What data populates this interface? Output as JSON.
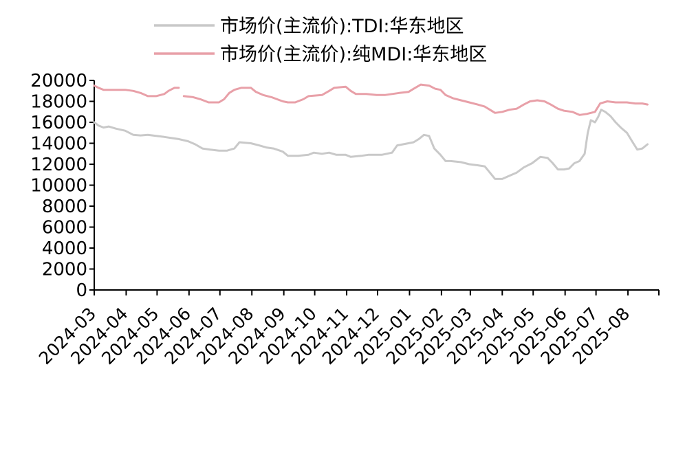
{
  "colors": {
    "tdi": "#c9c9c9",
    "mdi": "#e8a0a8",
    "axis": "#000000"
  },
  "chart_data": {
    "type": "line",
    "title": "",
    "xlabel": "",
    "ylabel": "",
    "ylim": [
      0,
      20000
    ],
    "yticks": [
      0,
      2000,
      4000,
      6000,
      8000,
      10000,
      12000,
      14000,
      16000,
      18000,
      20000
    ],
    "ytick_labels": [
      "0",
      "2000",
      "4000",
      "6000",
      "8000",
      "10000",
      "12000",
      "14000",
      "16000",
      "18000",
      "20000"
    ],
    "xlim": [
      "2024-03-01",
      "2025-08-31"
    ],
    "xtick_labels": [
      "2024-03",
      "2024-04",
      "2024-05",
      "2024-06",
      "2024-07",
      "2024-08",
      "2024-09",
      "2024-10",
      "2024-11",
      "2024-12",
      "2025-01",
      "2025-02",
      "2025-03",
      "2025-04",
      "2025-05",
      "2025-06",
      "2025-07",
      "2025-08"
    ],
    "legend_position": "top",
    "grid": false,
    "series": [
      {
        "name": "市场价(主流价):TDI:华东地区",
        "color": "#c9c9c9",
        "points": [
          [
            "2024-03-01",
            16000
          ],
          [
            "2024-03-05",
            15700
          ],
          [
            "2024-03-10",
            15500
          ],
          [
            "2024-03-15",
            15600
          ],
          [
            "2024-03-22",
            15400
          ],
          [
            "2024-03-31",
            15200
          ],
          [
            "2024-04-08",
            14800
          ],
          [
            "2024-04-15",
            14750
          ],
          [
            "2024-04-22",
            14800
          ],
          [
            "2024-04-30",
            14700
          ],
          [
            "2024-05-08",
            14600
          ],
          [
            "2024-05-15",
            14500
          ],
          [
            "2024-05-22",
            14400
          ],
          [
            "2024-05-31",
            14200
          ],
          [
            "2024-06-07",
            13900
          ],
          [
            "2024-06-14",
            13500
          ],
          [
            "2024-06-21",
            13400
          ],
          [
            "2024-06-30",
            13300
          ],
          [
            "2024-07-08",
            13300
          ],
          [
            "2024-07-15",
            13500
          ],
          [
            "2024-07-20",
            14100
          ],
          [
            "2024-07-31",
            14000
          ],
          [
            "2024-08-08",
            13800
          ],
          [
            "2024-08-15",
            13600
          ],
          [
            "2024-08-22",
            13500
          ],
          [
            "2024-08-31",
            13200
          ],
          [
            "2024-09-05",
            12800
          ],
          [
            "2024-09-15",
            12800
          ],
          [
            "2024-09-25",
            12900
          ],
          [
            "2024-09-30",
            13100
          ],
          [
            "2024-10-08",
            13000
          ],
          [
            "2024-10-15",
            13100
          ],
          [
            "2024-10-22",
            12900
          ],
          [
            "2024-10-31",
            12900
          ],
          [
            "2024-11-05",
            12700
          ],
          [
            "2024-11-15",
            12800
          ],
          [
            "2024-11-22",
            12900
          ],
          [
            "2024-11-30",
            12900
          ],
          [
            "2024-12-05",
            12900
          ],
          [
            "2024-12-15",
            13100
          ],
          [
            "2024-12-20",
            13800
          ],
          [
            "2024-12-31",
            14000
          ],
          [
            "2025-01-05",
            14100
          ],
          [
            "2025-01-10",
            14400
          ],
          [
            "2025-01-15",
            14800
          ],
          [
            "2025-01-20",
            14700
          ],
          [
            "2025-01-25",
            13500
          ],
          [
            "2025-01-31",
            12900
          ],
          [
            "2025-02-05",
            12300
          ],
          [
            "2025-02-10",
            12300
          ],
          [
            "2025-02-20",
            12200
          ],
          [
            "2025-02-28",
            12000
          ],
          [
            "2025-03-08",
            11900
          ],
          [
            "2025-03-15",
            11800
          ],
          [
            "2025-03-20",
            11200
          ],
          [
            "2025-03-25",
            10600
          ],
          [
            "2025-04-01",
            10600
          ],
          [
            "2025-04-08",
            10900
          ],
          [
            "2025-04-15",
            11200
          ],
          [
            "2025-04-22",
            11700
          ],
          [
            "2025-04-30",
            12100
          ],
          [
            "2025-05-08",
            12700
          ],
          [
            "2025-05-15",
            12600
          ],
          [
            "2025-05-20",
            12100
          ],
          [
            "2025-05-25",
            11500
          ],
          [
            "2025-05-31",
            11500
          ],
          [
            "2025-06-05",
            11600
          ],
          [
            "2025-06-10",
            12100
          ],
          [
            "2025-06-15",
            12300
          ],
          [
            "2025-06-20",
            13000
          ],
          [
            "2025-06-23",
            15000
          ],
          [
            "2025-06-26",
            16200
          ],
          [
            "2025-06-30",
            16000
          ],
          [
            "2025-07-03",
            16500
          ],
          [
            "2025-07-06",
            17200
          ],
          [
            "2025-07-10",
            17000
          ],
          [
            "2025-07-15",
            16600
          ],
          [
            "2025-07-20",
            16000
          ],
          [
            "2025-07-25",
            15500
          ],
          [
            "2025-07-31",
            15000
          ],
          [
            "2025-08-05",
            14200
          ],
          [
            "2025-08-10",
            13400
          ],
          [
            "2025-08-15",
            13500
          ],
          [
            "2025-08-20",
            13900
          ]
        ]
      },
      {
        "name": "市场价(主流价):纯MDI:华东地区",
        "color": "#e8a0a8",
        "points": [
          [
            "2024-03-01",
            19500
          ],
          [
            "2024-03-05",
            19300
          ],
          [
            "2024-03-10",
            19100
          ],
          [
            "2024-03-20",
            19100
          ],
          [
            "2024-03-31",
            19100
          ],
          [
            "2024-04-08",
            19000
          ],
          [
            "2024-04-15",
            18800
          ],
          [
            "2024-04-22",
            18500
          ],
          [
            "2024-04-30",
            18500
          ],
          [
            "2024-05-08",
            18700
          ],
          [
            "2024-05-12",
            19000
          ],
          [
            "2024-05-18",
            19300
          ],
          [
            "2024-05-22",
            19300
          ],
          null,
          [
            "2024-05-27",
            18500
          ],
          [
            "2024-06-05",
            18400
          ],
          [
            "2024-06-12",
            18200
          ],
          [
            "2024-06-20",
            17900
          ],
          [
            "2024-06-30",
            17900
          ],
          [
            "2024-07-05",
            18200
          ],
          [
            "2024-07-10",
            18800
          ],
          [
            "2024-07-15",
            19100
          ],
          [
            "2024-07-22",
            19300
          ],
          [
            "2024-07-31",
            19300
          ],
          [
            "2024-08-05",
            18900
          ],
          [
            "2024-08-12",
            18600
          ],
          [
            "2024-08-20",
            18400
          ],
          [
            "2024-08-31",
            18000
          ],
          [
            "2024-09-05",
            17900
          ],
          [
            "2024-09-12",
            17900
          ],
          [
            "2024-09-20",
            18200
          ],
          [
            "2024-09-25",
            18500
          ],
          [
            "2024-10-08",
            18600
          ],
          [
            "2024-10-15",
            19000
          ],
          [
            "2024-10-20",
            19300
          ],
          [
            "2024-10-31",
            19400
          ],
          [
            "2024-11-05",
            19000
          ],
          [
            "2024-11-10",
            18700
          ],
          [
            "2024-11-20",
            18700
          ],
          [
            "2024-11-30",
            18600
          ],
          [
            "2024-12-08",
            18600
          ],
          [
            "2024-12-15",
            18700
          ],
          [
            "2024-12-22",
            18800
          ],
          [
            "2024-12-31",
            18900
          ],
          [
            "2025-01-05",
            19200
          ],
          [
            "2025-01-12",
            19600
          ],
          [
            "2025-01-20",
            19500
          ],
          [
            "2025-01-26",
            19200
          ],
          [
            "2025-01-31",
            19100
          ],
          [
            "2025-02-05",
            18600
          ],
          [
            "2025-02-12",
            18300
          ],
          [
            "2025-02-20",
            18100
          ],
          [
            "2025-02-28",
            17900
          ],
          [
            "2025-03-08",
            17700
          ],
          [
            "2025-03-15",
            17500
          ],
          [
            "2025-03-20",
            17200
          ],
          [
            "2025-03-25",
            16900
          ],
          [
            "2025-04-01",
            17000
          ],
          [
            "2025-04-08",
            17200
          ],
          [
            "2025-04-15",
            17300
          ],
          [
            "2025-04-22",
            17700
          ],
          [
            "2025-04-28",
            18000
          ],
          [
            "2025-05-05",
            18100
          ],
          [
            "2025-05-12",
            18000
          ],
          [
            "2025-05-18",
            17700
          ],
          [
            "2025-05-25",
            17300
          ],
          [
            "2025-05-31",
            17100
          ],
          [
            "2025-06-08",
            17000
          ],
          [
            "2025-06-15",
            16700
          ],
          [
            "2025-06-22",
            16800
          ],
          [
            "2025-06-30",
            17000
          ],
          [
            "2025-07-05",
            17800
          ],
          [
            "2025-07-12",
            18000
          ],
          [
            "2025-07-20",
            17900
          ],
          [
            "2025-07-31",
            17900
          ],
          [
            "2025-08-08",
            17800
          ],
          [
            "2025-08-15",
            17800
          ],
          [
            "2025-08-20",
            17700
          ]
        ]
      }
    ]
  }
}
